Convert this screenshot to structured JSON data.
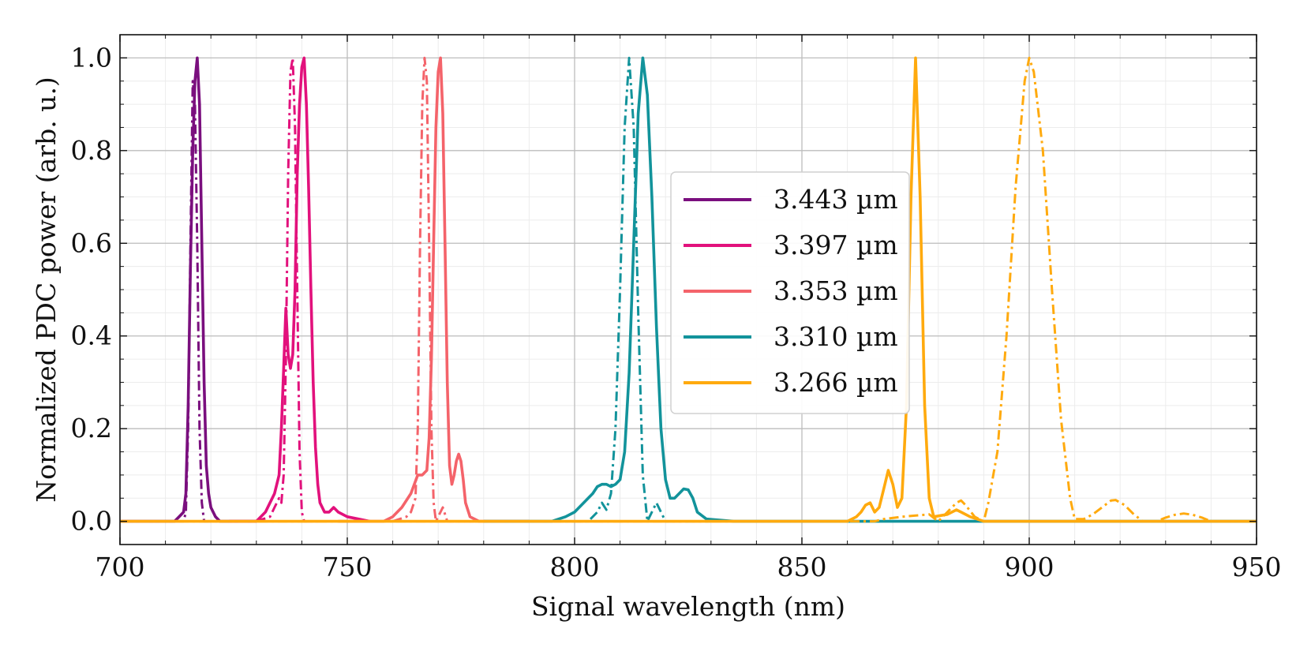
{
  "chart_data": {
    "type": "line",
    "xlabel": "Signal wavelength (nm)",
    "ylabel": "Normalized PDC power (arb. u.)",
    "xlim": [
      700,
      950
    ],
    "ylim": [
      -0.05,
      1.05
    ],
    "xticks": [
      700,
      750,
      800,
      850,
      900,
      950
    ],
    "xtick_labels": [
      "700",
      "750",
      "800",
      "850",
      "900",
      "950"
    ],
    "yticks": [
      0.0,
      0.2,
      0.4,
      0.6,
      0.8,
      1.0
    ],
    "ytick_labels": [
      "0.0",
      "0.2",
      "0.4",
      "0.6",
      "0.8",
      "1.0"
    ],
    "grid": true,
    "minor_grid": true,
    "legend_position": "center",
    "series": [
      {
        "name": "3.443 µm",
        "color": "#7a0f7e",
        "measured": [
          [
            700,
            0.0
          ],
          [
            712,
            0.0
          ],
          [
            713,
            0.01
          ],
          [
            714,
            0.02
          ],
          [
            714.5,
            0.06
          ],
          [
            715,
            0.25
          ],
          [
            715.5,
            0.55
          ],
          [
            716,
            0.8
          ],
          [
            716.5,
            0.95
          ],
          [
            717,
            1.0
          ],
          [
            717.5,
            0.9
          ],
          [
            718,
            0.6
          ],
          [
            718.5,
            0.3
          ],
          [
            719,
            0.12
          ],
          [
            719.5,
            0.06
          ],
          [
            720,
            0.03
          ],
          [
            721,
            0.01
          ],
          [
            722,
            0.0
          ],
          [
            730,
            0.0
          ]
        ],
        "simulated": [
          [
            712,
            0.0
          ],
          [
            714,
            0.0
          ],
          [
            714.5,
            0.02
          ],
          [
            715,
            0.2
          ],
          [
            715.5,
            0.6
          ],
          [
            716,
            0.95
          ],
          [
            716.5,
            0.9
          ],
          [
            717,
            0.6
          ],
          [
            717.5,
            0.2
          ],
          [
            718,
            0.04
          ],
          [
            718.5,
            0.0
          ],
          [
            724,
            0.0
          ]
        ]
      },
      {
        "name": "3.397 µm",
        "color": "#e2117c",
        "measured": [
          [
            724,
            0.0
          ],
          [
            730,
            0.0
          ],
          [
            732,
            0.02
          ],
          [
            733,
            0.04
          ],
          [
            734,
            0.06
          ],
          [
            735,
            0.1
          ],
          [
            735.5,
            0.2
          ],
          [
            736,
            0.33
          ],
          [
            736.5,
            0.46
          ],
          [
            737,
            0.36
          ],
          [
            737.5,
            0.33
          ],
          [
            738,
            0.36
          ],
          [
            738.5,
            0.5
          ],
          [
            739,
            0.75
          ],
          [
            739.5,
            0.9
          ],
          [
            740,
            0.98
          ],
          [
            740.5,
            1.0
          ],
          [
            741,
            0.9
          ],
          [
            741.5,
            0.72
          ],
          [
            742,
            0.5
          ],
          [
            742.5,
            0.3
          ],
          [
            743,
            0.16
          ],
          [
            743.5,
            0.08
          ],
          [
            744,
            0.04
          ],
          [
            745,
            0.02
          ],
          [
            746,
            0.02
          ],
          [
            747,
            0.03
          ],
          [
            748,
            0.02
          ],
          [
            750,
            0.01
          ],
          [
            755,
            0.0
          ]
        ],
        "simulated": [
          [
            730,
            0.0
          ],
          [
            733,
            0.01
          ],
          [
            734,
            0.03
          ],
          [
            735,
            0.05
          ],
          [
            735.5,
            0.04
          ],
          [
            736,
            0.1
          ],
          [
            736.5,
            0.35
          ],
          [
            737,
            0.75
          ],
          [
            737.5,
            0.97
          ],
          [
            738,
            1.0
          ],
          [
            738.5,
            0.85
          ],
          [
            739,
            0.5
          ],
          [
            739.5,
            0.15
          ],
          [
            740,
            0.02
          ],
          [
            740.5,
            0.0
          ],
          [
            744,
            0.0
          ]
        ]
      },
      {
        "name": "3.353 µm",
        "color": "#f4636a",
        "measured": [
          [
            748,
            0.0
          ],
          [
            758,
            0.0
          ],
          [
            760,
            0.01
          ],
          [
            762,
            0.03
          ],
          [
            764,
            0.06
          ],
          [
            765.5,
            0.1
          ],
          [
            766.5,
            0.1
          ],
          [
            767.5,
            0.11
          ],
          [
            768,
            0.18
          ],
          [
            768.5,
            0.35
          ],
          [
            769,
            0.6
          ],
          [
            769.5,
            0.85
          ],
          [
            770,
            0.97
          ],
          [
            770.5,
            1.0
          ],
          [
            771,
            0.88
          ],
          [
            771.5,
            0.6
          ],
          [
            772,
            0.3
          ],
          [
            772.5,
            0.12
          ],
          [
            773,
            0.08
          ],
          [
            773.5,
            0.1
          ],
          [
            774,
            0.13
          ],
          [
            774.5,
            0.145
          ],
          [
            775,
            0.13
          ],
          [
            775.5,
            0.09
          ],
          [
            776,
            0.04
          ],
          [
            777,
            0.01
          ],
          [
            779,
            0.0
          ],
          [
            790,
            0.0
          ]
        ],
        "simulated": [
          [
            760,
            0.0
          ],
          [
            763,
            0.01
          ],
          [
            764,
            0.02
          ],
          [
            765,
            0.05
          ],
          [
            765.5,
            0.2
          ],
          [
            766,
            0.6
          ],
          [
            766.5,
            0.9
          ],
          [
            767,
            1.0
          ],
          [
            767.5,
            0.95
          ],
          [
            768,
            0.6
          ],
          [
            768.5,
            0.2
          ],
          [
            769,
            0.04
          ],
          [
            769.5,
            0.0
          ],
          [
            771,
            0.03
          ],
          [
            772,
            0.0
          ],
          [
            780,
            0.0
          ]
        ]
      },
      {
        "name": "3.310 µm",
        "color": "#12939b",
        "measured": [
          [
            780,
            0.0
          ],
          [
            795,
            0.0
          ],
          [
            798,
            0.01
          ],
          [
            800,
            0.02
          ],
          [
            802,
            0.04
          ],
          [
            804,
            0.06
          ],
          [
            805,
            0.075
          ],
          [
            806,
            0.08
          ],
          [
            807,
            0.08
          ],
          [
            808,
            0.075
          ],
          [
            809,
            0.08
          ],
          [
            810,
            0.09
          ],
          [
            811,
            0.15
          ],
          [
            812,
            0.32
          ],
          [
            813,
            0.6
          ],
          [
            814,
            0.88
          ],
          [
            815,
            1.0
          ],
          [
            816,
            0.92
          ],
          [
            817,
            0.7
          ],
          [
            818,
            0.42
          ],
          [
            819,
            0.2
          ],
          [
            820,
            0.09
          ],
          [
            821,
            0.05
          ],
          [
            822,
            0.05
          ],
          [
            823,
            0.06
          ],
          [
            824,
            0.07
          ],
          [
            825,
            0.068
          ],
          [
            826,
            0.05
          ],
          [
            827,
            0.02
          ],
          [
            829,
            0.005
          ],
          [
            835,
            0.0
          ],
          [
            950,
            0.0
          ]
        ],
        "simulated": [
          [
            795,
            0.0
          ],
          [
            803,
            0.0
          ],
          [
            804,
            0.01
          ],
          [
            805,
            0.02
          ],
          [
            806,
            0.04
          ],
          [
            807,
            0.025
          ],
          [
            808,
            0.06
          ],
          [
            809,
            0.2
          ],
          [
            810,
            0.5
          ],
          [
            811,
            0.85
          ],
          [
            812,
            1.0
          ],
          [
            813,
            0.85
          ],
          [
            814,
            0.45
          ],
          [
            815,
            0.1
          ],
          [
            816,
            0.0
          ],
          [
            817,
            0.02
          ],
          [
            818,
            0.04
          ],
          [
            819,
            0.02
          ],
          [
            820,
            0.0
          ],
          [
            830,
            0.0
          ]
        ]
      },
      {
        "name": "3.266 µm",
        "color": "#ffaa0e",
        "measured": [
          [
            700,
            0.0
          ],
          [
            860,
            0.0
          ],
          [
            862,
            0.01
          ],
          [
            863,
            0.02
          ],
          [
            864,
            0.035
          ],
          [
            865,
            0.04
          ],
          [
            866,
            0.02
          ],
          [
            867,
            0.03
          ],
          [
            868,
            0.07
          ],
          [
            869,
            0.11
          ],
          [
            870,
            0.08
          ],
          [
            871,
            0.03
          ],
          [
            872,
            0.05
          ],
          [
            873,
            0.25
          ],
          [
            874,
            0.7
          ],
          [
            875,
            1.0
          ],
          [
            876,
            0.7
          ],
          [
            877,
            0.25
          ],
          [
            878,
            0.05
          ],
          [
            879,
            0.01
          ],
          [
            882,
            0.015
          ],
          [
            884,
            0.025
          ],
          [
            885,
            0.02
          ],
          [
            887,
            0.01
          ],
          [
            890,
            0.0
          ],
          [
            950,
            0.0
          ]
        ],
        "simulated": [
          [
            700,
            0.0
          ],
          [
            866,
            0.0
          ],
          [
            868,
            0.005
          ],
          [
            872,
            0.01
          ],
          [
            878,
            0.015
          ],
          [
            880,
            0.0
          ],
          [
            882,
            0.02
          ],
          [
            884,
            0.04
          ],
          [
            885,
            0.045
          ],
          [
            886,
            0.035
          ],
          [
            888,
            0.01
          ],
          [
            890,
            0.0
          ],
          [
            891,
            0.04
          ],
          [
            893,
            0.15
          ],
          [
            895,
            0.4
          ],
          [
            897,
            0.72
          ],
          [
            899,
            0.95
          ],
          [
            900,
            1.0
          ],
          [
            901,
            0.97
          ],
          [
            903,
            0.8
          ],
          [
            905,
            0.5
          ],
          [
            907,
            0.22
          ],
          [
            909,
            0.05
          ],
          [
            910,
            0.005
          ],
          [
            912,
            0.005
          ],
          [
            914,
            0.015
          ],
          [
            916,
            0.03
          ],
          [
            918,
            0.045
          ],
          [
            919,
            0.046
          ],
          [
            921,
            0.035
          ],
          [
            923,
            0.015
          ],
          [
            925,
            0.0
          ],
          [
            928,
            0.0
          ],
          [
            930,
            0.008
          ],
          [
            932,
            0.014
          ],
          [
            934,
            0.017
          ],
          [
            936,
            0.014
          ],
          [
            938,
            0.008
          ],
          [
            940,
            0.0
          ],
          [
            950,
            0.0
          ]
        ]
      }
    ]
  }
}
